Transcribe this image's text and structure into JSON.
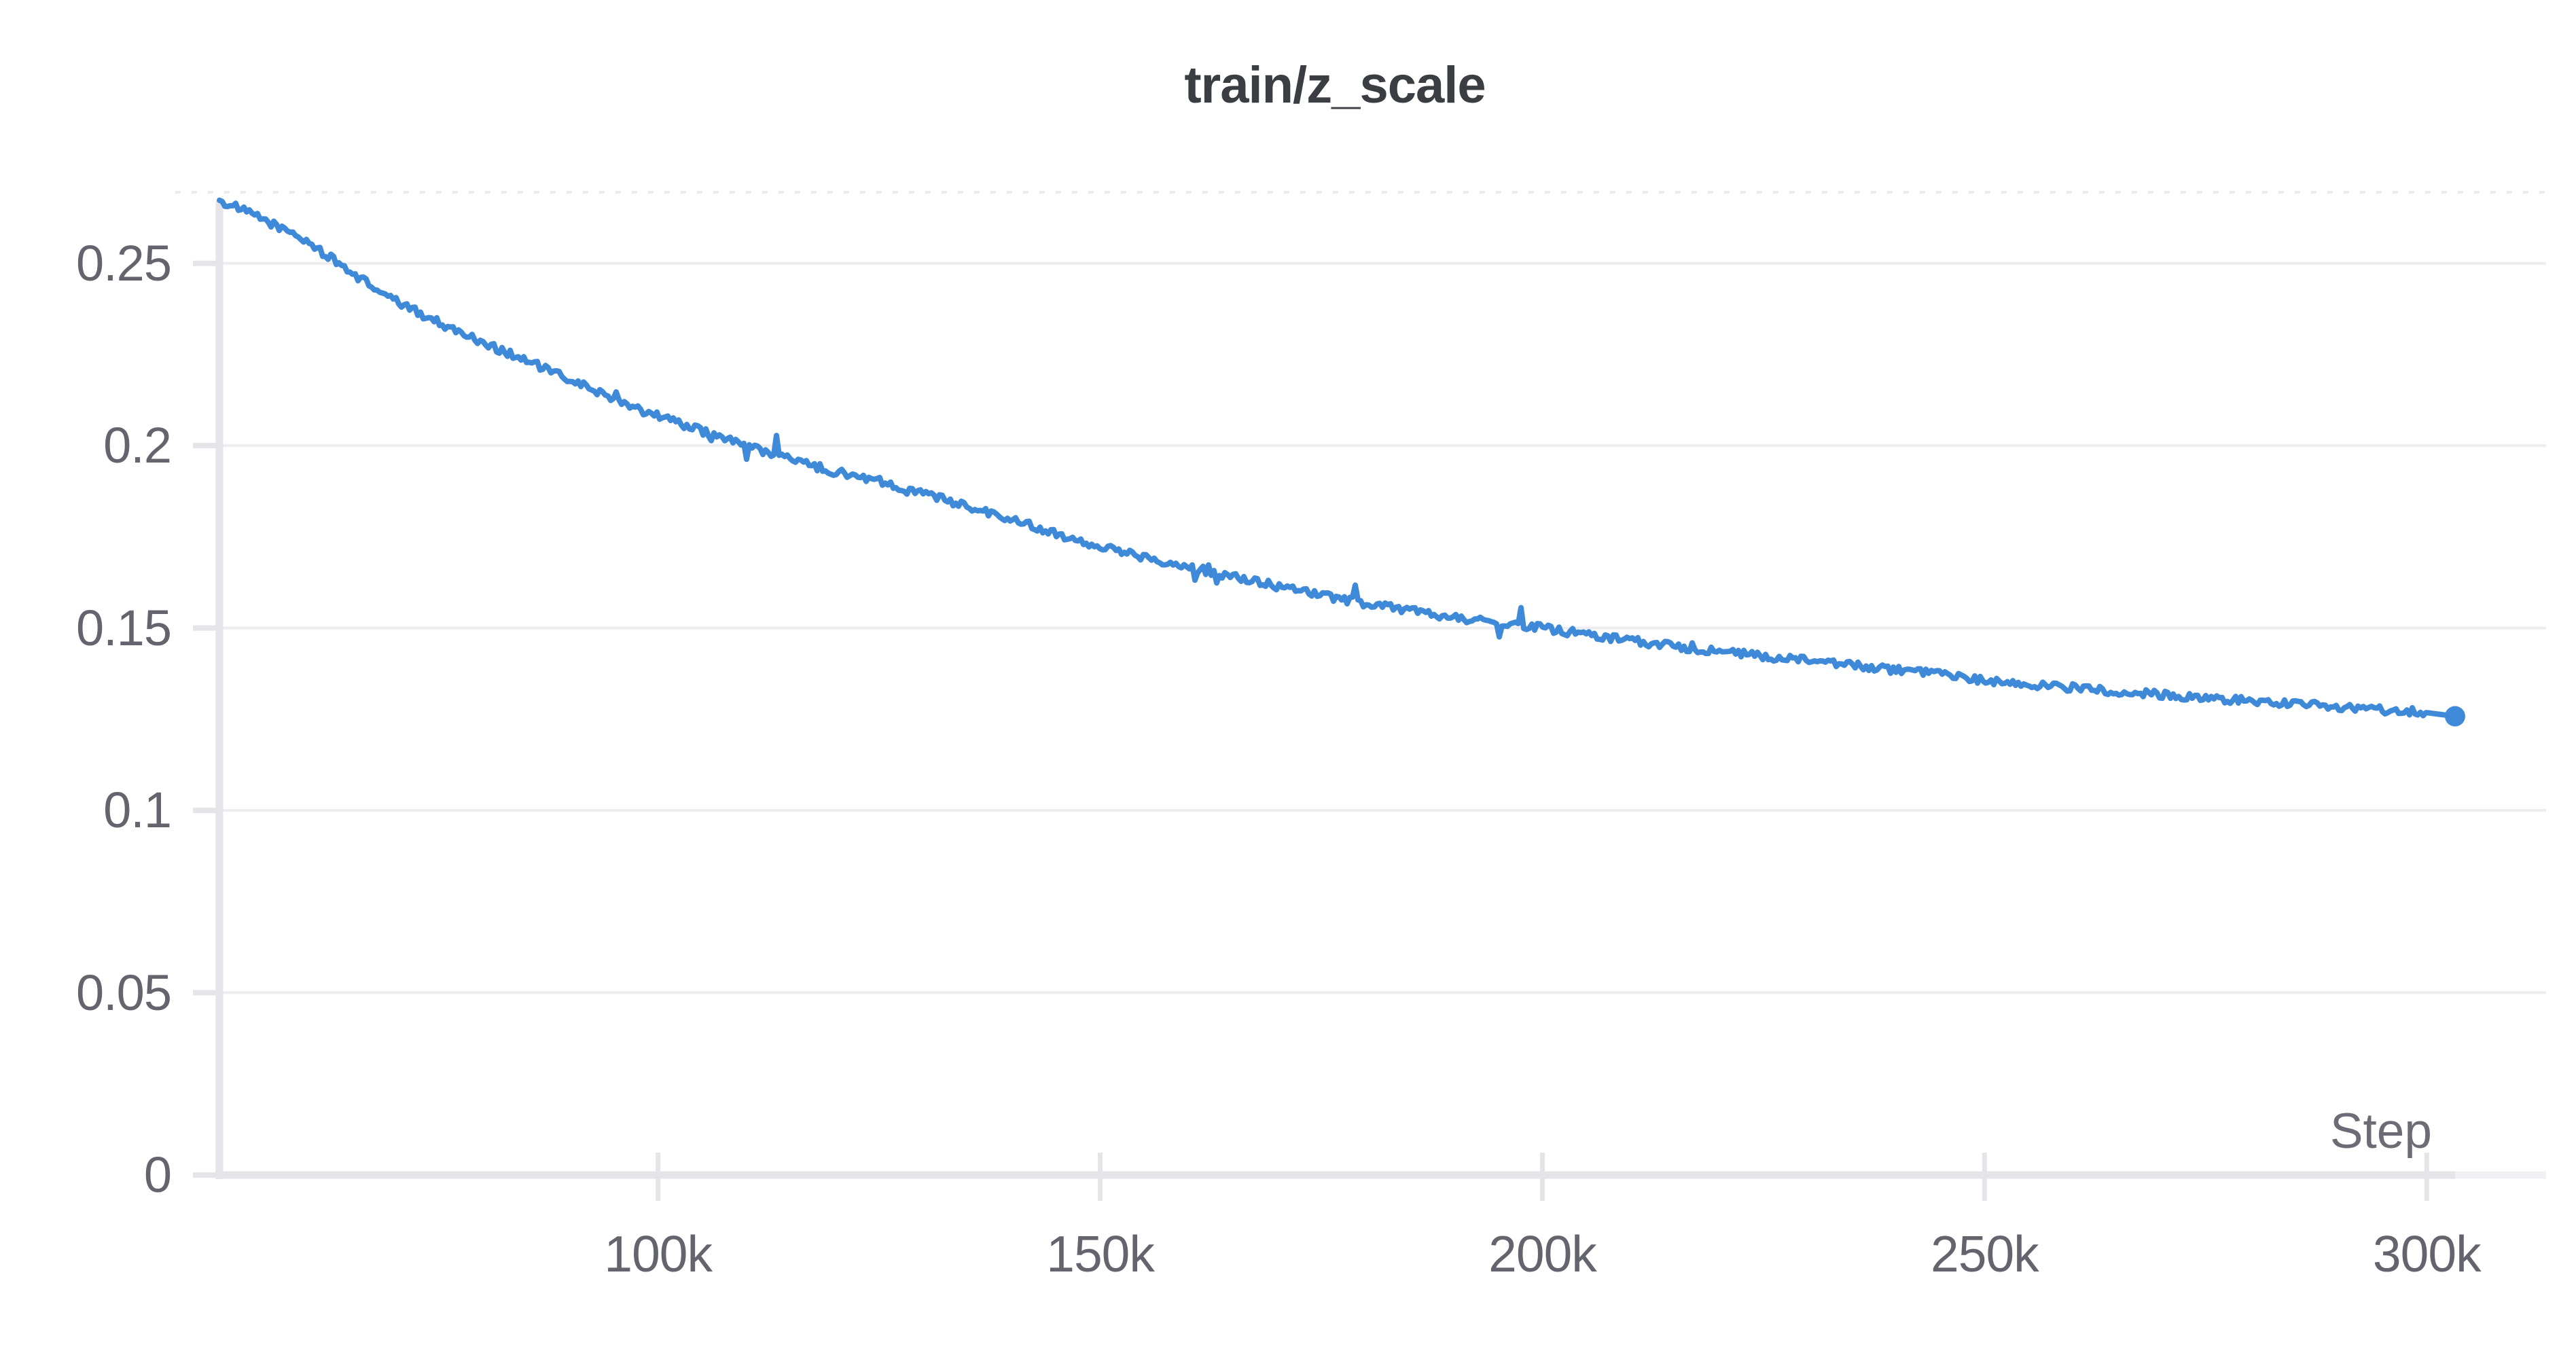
{
  "page": {
    "background": "#ffffff"
  },
  "chart_data": {
    "type": "line",
    "title": "train/z_scale",
    "xlabel": "Step",
    "ylabel": "",
    "legend": "none",
    "grid": "horizontal-only",
    "end_marker": "dot",
    "xlim": [
      50400,
      313500
    ],
    "ylim": [
      0,
      0.2695
    ],
    "xticks": [
      {
        "v": 100000,
        "label": "100k"
      },
      {
        "v": 150000,
        "label": "150k"
      },
      {
        "v": 200000,
        "label": "200k"
      },
      {
        "v": 250000,
        "label": "250k"
      },
      {
        "v": 300000,
        "label": "300k"
      }
    ],
    "yticks": [
      {
        "v": 0,
        "label": "0"
      },
      {
        "v": 0.05,
        "label": "0.05"
      },
      {
        "v": 0.1,
        "label": "0.1"
      },
      {
        "v": 0.15,
        "label": "0.15"
      },
      {
        "v": 0.2,
        "label": "0.2"
      },
      {
        "v": 0.25,
        "label": "0.25"
      }
    ],
    "series": [
      {
        "name": "train/z_scale",
        "color": "#3E8AD8",
        "points": [
          [
            50400,
            0.2673
          ],
          [
            55000,
            0.2625
          ],
          [
            60000,
            0.2565
          ],
          [
            65000,
            0.248
          ],
          [
            70000,
            0.24
          ],
          [
            75000,
            0.234
          ],
          [
            80000,
            0.2285
          ],
          [
            85000,
            0.2235
          ],
          [
            90000,
            0.218
          ],
          [
            95000,
            0.213
          ],
          [
            100000,
            0.2083
          ],
          [
            105000,
            0.204
          ],
          [
            110000,
            0.2
          ],
          [
            115000,
            0.1962
          ],
          [
            120000,
            0.1928
          ],
          [
            125000,
            0.1905
          ],
          [
            130000,
            0.1868
          ],
          [
            135000,
            0.1835
          ],
          [
            140000,
            0.1798
          ],
          [
            145000,
            0.176
          ],
          [
            150000,
            0.1723
          ],
          [
            155000,
            0.1695
          ],
          [
            160000,
            0.1668
          ],
          [
            165000,
            0.164
          ],
          [
            170000,
            0.1615
          ],
          [
            175000,
            0.159
          ],
          [
            180000,
            0.1568
          ],
          [
            185000,
            0.1548
          ],
          [
            190000,
            0.153
          ],
          [
            195000,
            0.1513
          ],
          [
            200000,
            0.15
          ],
          [
            205000,
            0.1482
          ],
          [
            210000,
            0.1466
          ],
          [
            215000,
            0.145
          ],
          [
            220000,
            0.1436
          ],
          [
            225000,
            0.1422
          ],
          [
            230000,
            0.141
          ],
          [
            235000,
            0.1398
          ],
          [
            240000,
            0.1385
          ],
          [
            245000,
            0.1372
          ],
          [
            250000,
            0.1356
          ],
          [
            255000,
            0.1345
          ],
          [
            260000,
            0.1336
          ],
          [
            265000,
            0.1326
          ],
          [
            270000,
            0.1317
          ],
          [
            275000,
            0.1308
          ],
          [
            280000,
            0.13
          ],
          [
            285000,
            0.1292
          ],
          [
            290000,
            0.1284
          ],
          [
            295000,
            0.1276
          ],
          [
            300000,
            0.1268
          ],
          [
            303200,
            0.1258
          ]
        ]
      }
    ],
    "colors": {
      "line": "#3E8AD8",
      "axis": "#e5e5e9",
      "axis_faint": "#f1f1f4",
      "grid": "#ededf0",
      "top_dash": "#ececef",
      "tick_label": "#63646d",
      "title": "#3a3d42",
      "xlabel_color": "#6b6c75"
    }
  }
}
